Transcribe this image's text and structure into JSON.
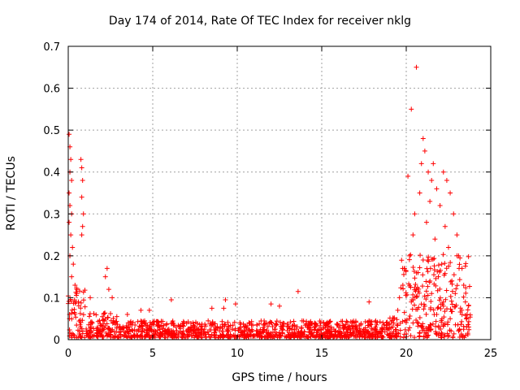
{
  "chart_data": {
    "type": "scatter",
    "title": "Day 174 of 2014, Rate Of TEC Index for receiver nklg",
    "xlabel": "GPS time / hours",
    "ylabel": "ROTI / TECUs",
    "xlim": [
      0,
      25
    ],
    "ylim": [
      0,
      0.7
    ],
    "xticks": [
      0,
      5,
      10,
      15,
      20,
      25
    ],
    "yticks": [
      0,
      0.1,
      0.2,
      0.3,
      0.4,
      0.5,
      0.6,
      0.7
    ],
    "grid": true,
    "marker": "+",
    "color": "#ff0000",
    "series": [
      {
        "points": [
          [
            0.05,
            0.49
          ],
          [
            0.1,
            0.46
          ],
          [
            0.15,
            0.43
          ],
          [
            0.1,
            0.4
          ],
          [
            0.2,
            0.38
          ],
          [
            0.05,
            0.35
          ],
          [
            0.1,
            0.32
          ],
          [
            0.2,
            0.3
          ],
          [
            0.05,
            0.28
          ],
          [
            0.15,
            0.25
          ],
          [
            0.25,
            0.22
          ],
          [
            0.1,
            0.2
          ],
          [
            0.3,
            0.18
          ],
          [
            0.2,
            0.15
          ],
          [
            0.4,
            0.13
          ],
          [
            0.5,
            0.11
          ],
          [
            0.6,
            0.09
          ],
          [
            0.75,
            0.43
          ],
          [
            0.8,
            0.41
          ],
          [
            0.85,
            0.38
          ],
          [
            0.8,
            0.34
          ],
          [
            0.9,
            0.3
          ],
          [
            0.85,
            0.27
          ],
          [
            0.8,
            0.25
          ],
          [
            1.3,
            0.1
          ],
          [
            2.3,
            0.17
          ],
          [
            2.2,
            0.15
          ],
          [
            2.4,
            0.12
          ],
          [
            2.6,
            0.1
          ],
          [
            3.5,
            0.06
          ],
          [
            4.3,
            0.07
          ],
          [
            4.8,
            0.07
          ],
          [
            6.1,
            0.095
          ],
          [
            8.5,
            0.075
          ],
          [
            9.2,
            0.075
          ],
          [
            9.3,
            0.095
          ],
          [
            9.9,
            0.085
          ],
          [
            12.0,
            0.085
          ],
          [
            12.5,
            0.08
          ],
          [
            13.6,
            0.115
          ],
          [
            17.8,
            0.09
          ],
          [
            20.1,
            0.39
          ],
          [
            20.3,
            0.55
          ],
          [
            20.6,
            0.65
          ],
          [
            21.0,
            0.48
          ],
          [
            21.1,
            0.45
          ],
          [
            20.9,
            0.42
          ],
          [
            21.3,
            0.4
          ],
          [
            21.5,
            0.38
          ],
          [
            21.6,
            0.42
          ],
          [
            22.2,
            0.4
          ],
          [
            22.4,
            0.38
          ],
          [
            21.8,
            0.36
          ],
          [
            22.6,
            0.35
          ],
          [
            20.8,
            0.35
          ],
          [
            21.4,
            0.33
          ],
          [
            22.0,
            0.32
          ],
          [
            22.8,
            0.3
          ],
          [
            20.5,
            0.3
          ],
          [
            21.2,
            0.28
          ],
          [
            22.3,
            0.27
          ],
          [
            23.0,
            0.25
          ],
          [
            20.4,
            0.25
          ],
          [
            21.7,
            0.24
          ],
          [
            22.5,
            0.22
          ],
          [
            23.1,
            0.2
          ],
          [
            20.2,
            0.2
          ],
          [
            21.0,
            0.19
          ],
          [
            22.1,
            0.18
          ],
          [
            23.3,
            0.17
          ],
          [
            19.9,
            0.17
          ],
          [
            20.7,
            0.16
          ],
          [
            21.9,
            0.15
          ],
          [
            22.7,
            0.14
          ],
          [
            23.4,
            0.13
          ],
          [
            19.8,
            0.13
          ],
          [
            20.6,
            0.12
          ],
          [
            21.5,
            0.11
          ],
          [
            22.9,
            0.11
          ],
          [
            23.5,
            0.09
          ],
          [
            19.6,
            0.1
          ],
          [
            20.3,
            0.09
          ],
          [
            21.1,
            0.08
          ],
          [
            22.2,
            0.08
          ],
          [
            23.6,
            0.06
          ],
          [
            19.5,
            0.07
          ],
          [
            21.8,
            0.06
          ],
          [
            22.6,
            0.05
          ],
          [
            23.7,
            0.03
          ]
        ],
        "density": [
          {
            "x0": 0,
            "x1": 1,
            "ymax": 0.12
          },
          {
            "x0": 1,
            "x1": 3,
            "ymax": 0.06
          },
          {
            "x0": 3,
            "x1": 19,
            "ymax": 0.04
          },
          {
            "x0": 19,
            "x1": 19.6,
            "ymax": 0.06
          },
          {
            "x0": 19.6,
            "x1": 23.8,
            "ymax": 0.2
          }
        ]
      }
    ]
  }
}
